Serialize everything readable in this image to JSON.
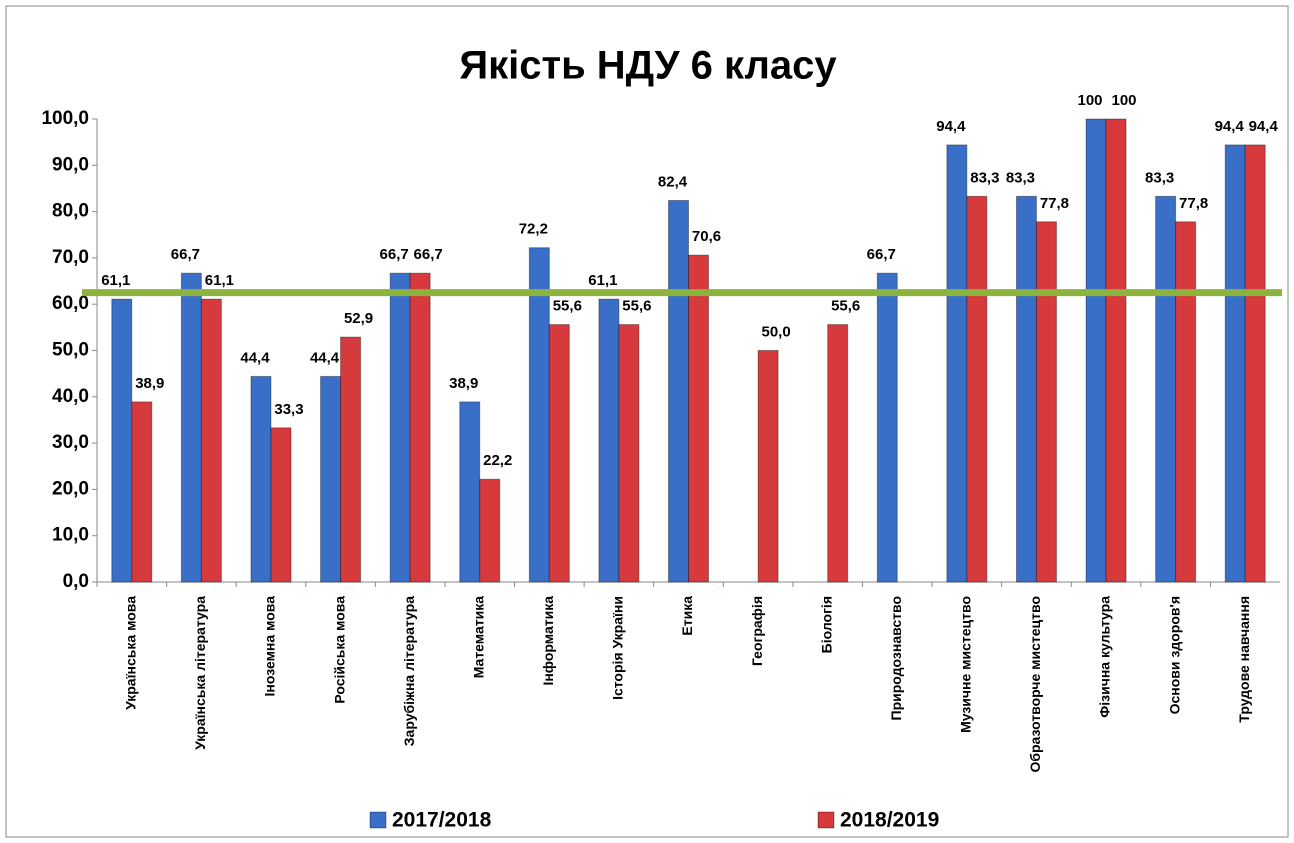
{
  "chart_data": {
    "type": "bar",
    "title": "Якість НДУ 6 класу",
    "categories": [
      "Українська мова",
      "Українська література",
      "Іноземна мова",
      "Російська мова",
      "Зарубіжна література",
      "Математика",
      "Інформатика",
      "Історія України",
      "Етика",
      "Географія",
      "Біологія",
      "Природознавство",
      "Музичне мистецтво",
      "Образотворче мистецтво",
      "Фізична культура",
      "Основи здоров'я",
      "Трудове навчання"
    ],
    "series": [
      {
        "name": "2017/2018",
        "color": "#3a6fc8",
        "values": [
          61.1,
          66.7,
          44.4,
          44.4,
          66.7,
          38.9,
          72.2,
          61.1,
          82.4,
          null,
          null,
          66.7,
          94.4,
          83.3,
          100,
          83.3,
          94.4
        ],
        "value_labels": [
          "61,1",
          "66,7",
          "44,4",
          "44,4",
          "66,7",
          "38,9",
          "72,2",
          "61,1",
          "82,4",
          null,
          null,
          "66,7",
          "94,4",
          "83,3",
          "100",
          "83,3",
          "94,4"
        ]
      },
      {
        "name": "2018/2019",
        "color": "#d63a3c",
        "values": [
          38.9,
          61.1,
          33.3,
          52.9,
          66.7,
          22.2,
          55.6,
          55.6,
          70.6,
          50.0,
          55.6,
          null,
          83.3,
          77.8,
          100,
          77.8,
          94.4
        ],
        "value_labels": [
          "38,9",
          "61,1",
          "33,3",
          "52,9",
          "66,7",
          "22,2",
          "55,6",
          "55,6",
          "70,6",
          "50,0",
          "55,6",
          null,
          "83,3",
          "77,8",
          "100",
          "77,8",
          "94,4"
        ]
      }
    ],
    "ylim": [
      0,
      100
    ],
    "yticks": [
      {
        "value": 0,
        "label": "0,0"
      },
      {
        "value": 10,
        "label": "10,0"
      },
      {
        "value": 20,
        "label": "20,0"
      },
      {
        "value": 30,
        "label": "30,0"
      },
      {
        "value": 40,
        "label": "40,0"
      },
      {
        "value": 50,
        "label": "50,0"
      },
      {
        "value": 60,
        "label": "60,0"
      },
      {
        "value": 70,
        "label": "70,0"
      },
      {
        "value": 80,
        "label": "80,0"
      },
      {
        "value": 90,
        "label": "90,0"
      },
      {
        "value": 100,
        "label": "100,0"
      }
    ],
    "grid": false,
    "reference_line": {
      "value": 62.5,
      "color": "#8db33f"
    },
    "legend": "bottom"
  }
}
